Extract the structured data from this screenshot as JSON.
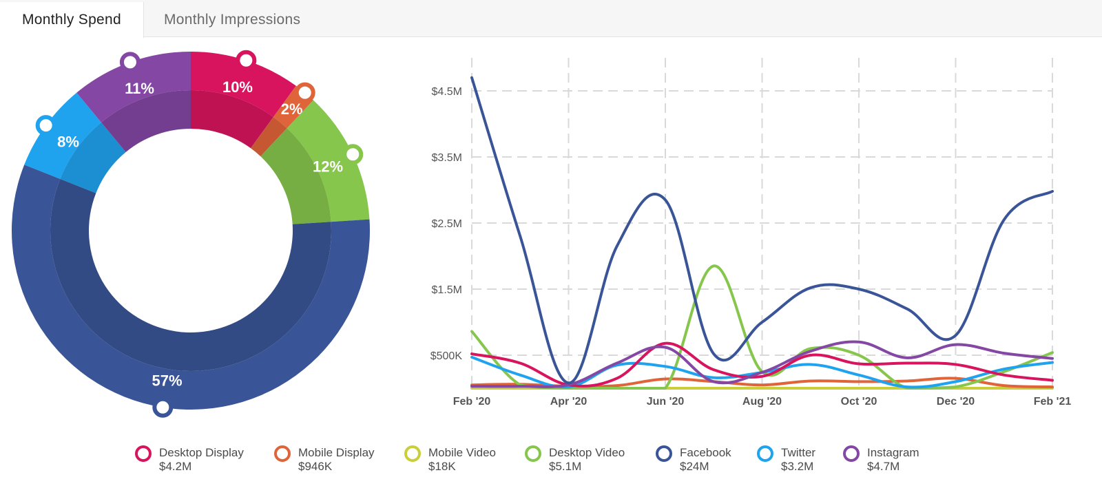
{
  "tabs": [
    {
      "label": "Monthly Spend",
      "active": true
    },
    {
      "label": "Monthly Impressions",
      "active": false
    }
  ],
  "colors": {
    "desktop_display": "#d8145e",
    "mobile_display": "#e0643a",
    "mobile_video": "#c9cf3a",
    "desktop_video": "#86c64c",
    "facebook": "#3a5597",
    "twitter": "#1fa3ee",
    "instagram": "#8447a4"
  },
  "chart_data": [
    {
      "type": "pie",
      "variant": "donut",
      "slices": [
        {
          "series": "Desktop Display",
          "label": "10%",
          "value": 10,
          "color": "#d8145e"
        },
        {
          "series": "Mobile Display",
          "label": "2%",
          "value": 2,
          "color": "#e0643a"
        },
        {
          "series": "Desktop Video",
          "label": "12%",
          "value": 12,
          "color": "#86c64c"
        },
        {
          "series": "Facebook",
          "label": "57%",
          "value": 57,
          "color": "#3a5597"
        },
        {
          "series": "Twitter",
          "label": "8%",
          "value": 8,
          "color": "#1fa3ee"
        },
        {
          "series": "Instagram",
          "label": "11%",
          "value": 11,
          "color": "#8447a4"
        }
      ]
    },
    {
      "type": "line",
      "x": [
        "2020-02",
        "2020-03",
        "2020-04",
        "2020-05",
        "2020-06",
        "2020-07",
        "2020-08",
        "2020-09",
        "2020-10",
        "2020-11",
        "2020-12",
        "2021-01",
        "2021-02"
      ],
      "x_tick_labels": [
        "Feb '20",
        "Apr '20",
        "Jun '20",
        "Aug '20",
        "Oct '20",
        "Dec '20",
        "Feb '21"
      ],
      "y_tick_labels": [
        "$500K",
        "$1.5M",
        "$2.5M",
        "$3.5M",
        "$4.5M"
      ],
      "y_tick_values": [
        500000,
        1500000,
        2500000,
        3500000,
        4500000
      ],
      "ylim": [
        0,
        5000000
      ],
      "grid": true,
      "legend_position": "bottom",
      "series": [
        {
          "name": "Desktop Display",
          "total": "$4.2M",
          "color": "#d8145e",
          "values": [
            520000,
            380000,
            50000,
            150000,
            680000,
            280000,
            180000,
            500000,
            370000,
            380000,
            360000,
            200000,
            120000
          ]
        },
        {
          "name": "Mobile Display",
          "total": "$946K",
          "color": "#e0643a",
          "values": [
            50000,
            60000,
            30000,
            40000,
            140000,
            100000,
            50000,
            110000,
            100000,
            110000,
            150000,
            40000,
            20000
          ]
        },
        {
          "name": "Mobile Video",
          "total": "$18K",
          "color": "#c9cf3a",
          "values": [
            0,
            0,
            0,
            0,
            0,
            0,
            0,
            0,
            0,
            0,
            0,
            0,
            0
          ]
        },
        {
          "name": "Desktop Video",
          "total": "$5.1M",
          "color": "#86c64c",
          "values": [
            860000,
            50000,
            0,
            0,
            0,
            1850000,
            250000,
            600000,
            500000,
            0,
            20000,
            250000,
            540000
          ]
        },
        {
          "name": "Facebook",
          "total": "$24M",
          "color": "#3a5597",
          "values": [
            4700000,
            2300000,
            80000,
            2150000,
            2850000,
            520000,
            1000000,
            1520000,
            1500000,
            1200000,
            800000,
            2550000,
            2980000
          ]
        },
        {
          "name": "Twitter",
          "total": "$3.2M",
          "color": "#1fa3ee",
          "values": [
            470000,
            200000,
            20000,
            350000,
            330000,
            160000,
            240000,
            360000,
            200000,
            20000,
            100000,
            290000,
            390000
          ]
        },
        {
          "name": "Instagram",
          "total": "$4.7M",
          "color": "#8447a4",
          "values": [
            30000,
            30000,
            50000,
            380000,
            620000,
            100000,
            240000,
            560000,
            700000,
            460000,
            660000,
            530000,
            450000
          ]
        }
      ]
    }
  ]
}
